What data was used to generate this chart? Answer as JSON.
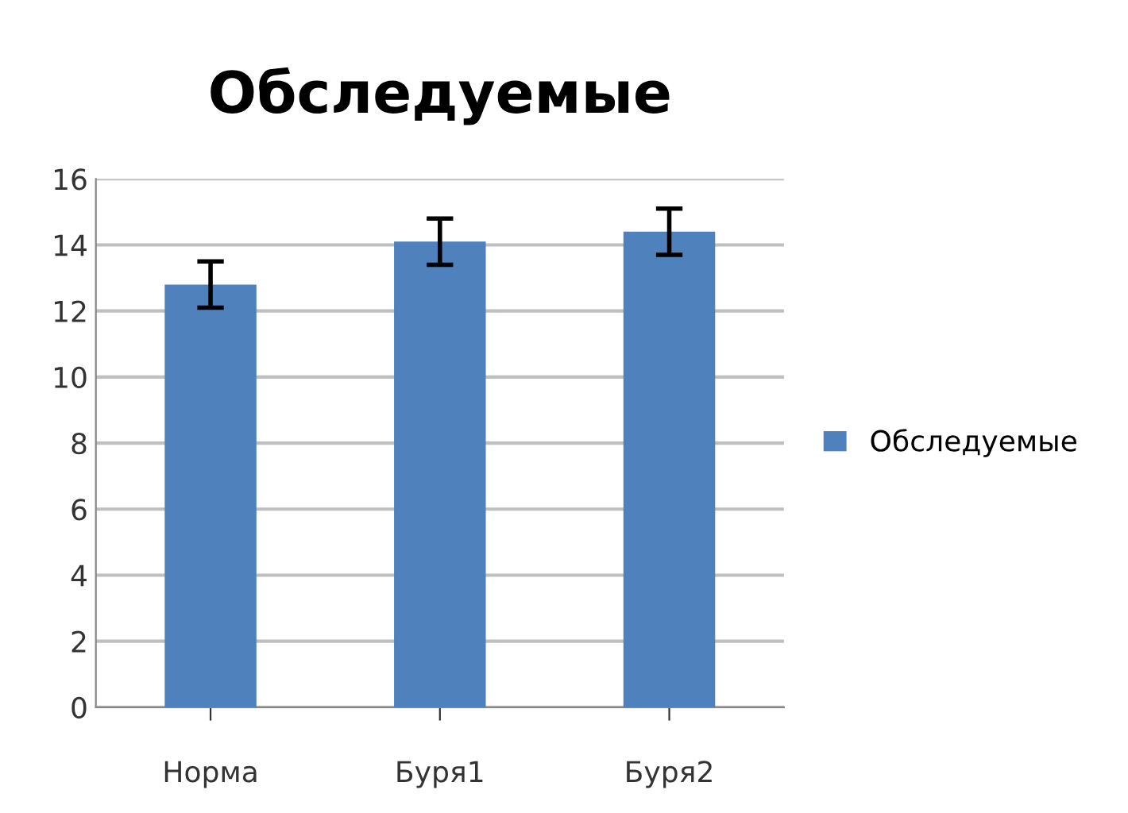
{
  "chart_data": {
    "type": "bar",
    "title": "Обследуемые",
    "categories": [
      "Норма",
      "Буря1",
      "Буря2"
    ],
    "series": [
      {
        "name": "Обследуемые",
        "color": "#4f81bd",
        "values": [
          12.8,
          14.1,
          14.4
        ],
        "errors": [
          0.7,
          0.7,
          0.7
        ]
      }
    ],
    "ylim": [
      0,
      16
    ],
    "yticks": [
      0,
      2,
      4,
      6,
      8,
      10,
      12,
      14,
      16
    ],
    "grid": "y",
    "legend": "right"
  }
}
